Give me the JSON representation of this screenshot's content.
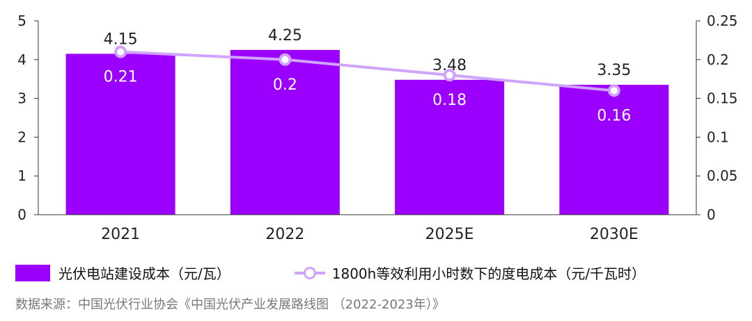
{
  "chart_data": {
    "type": "bar",
    "categories": [
      "2021",
      "2022",
      "2025E",
      "2030E"
    ],
    "series": [
      {
        "name": "光伏电站建设成本（元/瓦）",
        "type": "bar",
        "axis": "left",
        "color": "#9b00ff",
        "values": [
          4.15,
          4.25,
          3.48,
          3.35
        ],
        "labels": [
          "4.15",
          "4.25",
          "3.48",
          "3.35"
        ]
      },
      {
        "name": "1800h等效利用小时数下的度电成本（元/千瓦时）",
        "type": "line",
        "axis": "right",
        "color": "#cfa3ff",
        "values": [
          0.21,
          0.2,
          0.18,
          0.16
        ],
        "labels": [
          "0.21",
          "0.2",
          "0.18",
          "0.16"
        ]
      }
    ],
    "left_axis": {
      "ylim": [
        0,
        5
      ],
      "ticks": [
        "0",
        "1",
        "2",
        "3",
        "4",
        "5"
      ]
    },
    "right_axis": {
      "ylim": [
        0,
        0.25
      ],
      "ticks": [
        "0",
        "0.05",
        "0.1",
        "0.15",
        "0.2",
        "0.25"
      ]
    },
    "grid": false,
    "legend_position": "bottom-left"
  },
  "legend": {
    "bar_label": "光伏电站建设成本（元/瓦）",
    "line_label": "1800h等效利用小时数下的度电成本（元/千瓦时）"
  },
  "source": "数据来源：中国光伏行业协会《中国光伏产业发展路线图 （2022-2023年）》"
}
